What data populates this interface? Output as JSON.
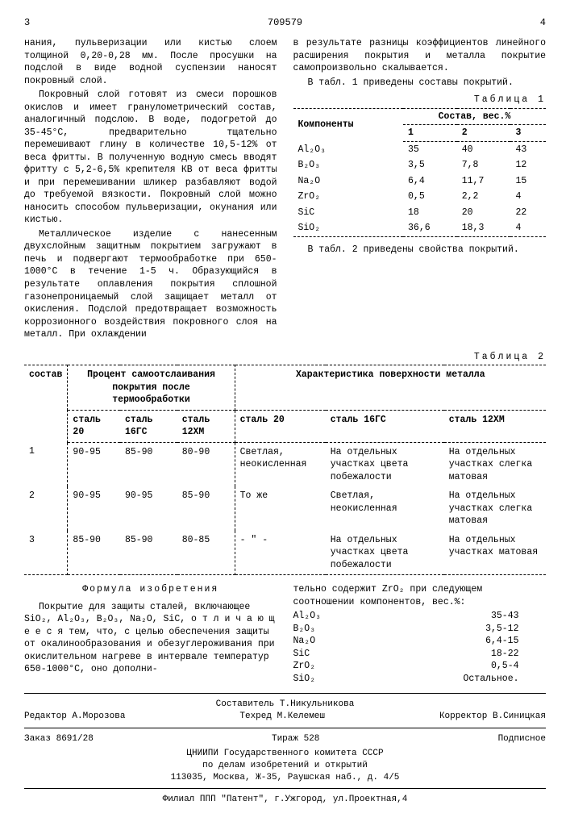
{
  "header": {
    "left_page": "3",
    "doc_number": "709579",
    "right_page": "4"
  },
  "col1": {
    "p1": "нания, пульверизации или кистью слоем толщиной 0,20-0,28 мм. После просушки на подслой в виде водной суспензии наносят покровный слой.",
    "p2": "Покровный слой готовят из смеси порошков окислов и имеет гранулометрический состав, аналогичный подслою. В воде, подогретой до 35-45°С, предварительно тщательно перемешивают глину в количестве 10,5-12% от веса фритты. В полученную водную смесь вводят фритту с 5,2-6,5% крепителя КВ от веса фритты и при перемешивании шликер разбавляют водой до требуемой вязкости. Покровный слой можно наносить способом пульверизации, окунания или кистью.",
    "p3": "Металлическое изделие с нанесенным двухслойным защитным покрытием загружают в печь и подвергают термообработке при 650-1000°С в течение 1-5 ч. Образующийся в результате оплавления покрытия сплошной газонепроницаемый слой защищает металл от окисления. Подслой предотвращает возможность коррозионного воздействия покровного слоя на металл. При охлаждении"
  },
  "col2": {
    "p1": "в результате разницы коэффициентов линейного расширения покрытия и металла покрытие самопроизвольно скалывается.",
    "p2": "В табл. 1 приведены составы покрытий.",
    "p3": "В табл. 2 приведены свойства покрытий."
  },
  "line_numbers": [
    "5",
    "10",
    "15",
    "20",
    "25"
  ],
  "table1": {
    "caption": "Таблица 1",
    "col_header": "Компоненты",
    "sub_header": "Состав, вес.%",
    "cols": [
      "1",
      "2",
      "3"
    ],
    "rows": [
      {
        "comp": "Al₂O₃",
        "v": [
          "35",
          "40",
          "43"
        ]
      },
      {
        "comp": "B₂O₃",
        "v": [
          "3,5",
          "7,8",
          "12"
        ]
      },
      {
        "comp": "Na₂O",
        "v": [
          "6,4",
          "11,7",
          "15"
        ]
      },
      {
        "comp": "ZrO₂",
        "v": [
          "0,5",
          "2,2",
          "4"
        ]
      },
      {
        "comp": "SiC",
        "v": [
          "18",
          "20",
          "22"
        ]
      },
      {
        "comp": "SiO₂",
        "v": [
          "36,6",
          "18,3",
          "4"
        ]
      }
    ]
  },
  "table2": {
    "caption": "Таблица 2",
    "h1": "состав",
    "h2": "Процент самоотслаивания покрытия после термообработки",
    "h3": "Характеристика поверхности металла",
    "sub_cols": [
      "сталь 20",
      "сталь 16ГС",
      "сталь 12ХМ",
      "сталь 20",
      "сталь 16ГС",
      "сталь 12ХМ"
    ],
    "rows": [
      {
        "n": "1",
        "v": [
          "90-95",
          "85-90",
          "80-90",
          "Светлая, неокисленная",
          "На отдельных участках цвета побежалости",
          "На отдельных участках слегка матовая"
        ]
      },
      {
        "n": "2",
        "v": [
          "90-95",
          "90-95",
          "85-90",
          "То же",
          "Светлая, неокисленная",
          "На отдельных участках слегка матовая"
        ]
      },
      {
        "n": "3",
        "v": [
          "85-90",
          "85-90",
          "80-85",
          "- \" -",
          "На отдельных участках цвета побежалости",
          "На отдельных участках матовая"
        ]
      }
    ]
  },
  "formula": {
    "title": "Формула изобретения",
    "left": "Покрытие для защиты сталей, включающее SiO₂, Al₂O₃, B₂O₃, Na₂O, SiC, о т л и ч а ю щ е е с я тем, что, с целью обеспечения защиты от окалинообразования и обезуглероживания при окислительном нагреве в интервале температур 650-1000°С, оно дополни-",
    "right_intro": "тельно содержит ZrO₂ при следующем соотношении компонентов, вес.%:",
    "components": [
      {
        "n": "Al₂O₃",
        "r": "35-43"
      },
      {
        "n": "B₂O₃",
        "r": "3,5-12"
      },
      {
        "n": "Na₂O",
        "r": "6,4-15"
      },
      {
        "n": "SiC",
        "r": "18-22"
      },
      {
        "n": "ZrO₂",
        "r": "0,5-4"
      },
      {
        "n": "SiO₂",
        "r": "Остальное."
      }
    ],
    "line50": "50",
    "line55": "55"
  },
  "footer": {
    "compiler": "Составитель Т.Никульникова",
    "editor": "Редактор А.Морозова",
    "tech": "Техред М.Келемеш",
    "corrector": "Корректор В.Синицкая",
    "order": "Заказ 8691/28",
    "tirazh": "Тираж 528",
    "sign": "Подписное",
    "org1": "ЦНИИПИ Государственного комитета СССР",
    "org2": "по делам изобретений и открытий",
    "addr1": "113035, Москва, Ж-35, Раушская наб., д. 4/5",
    "addr2": "Филиал ППП \"Патент\", г.Ужгород, ул.Проектная,4"
  }
}
